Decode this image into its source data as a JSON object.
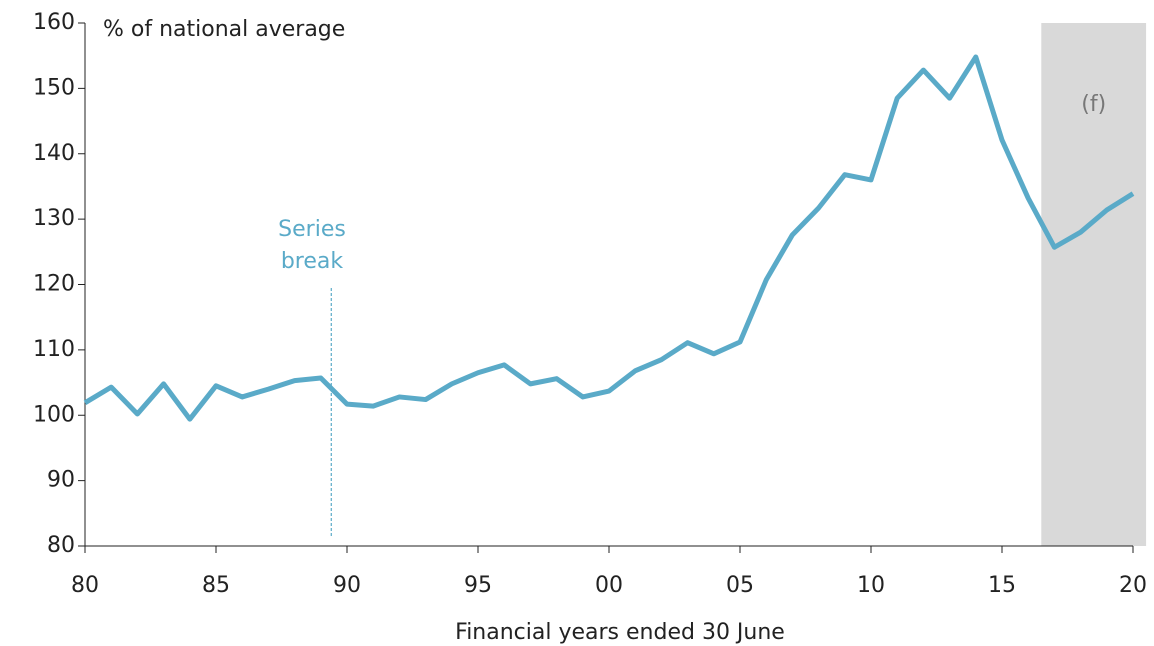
{
  "chart_data": {
    "type": "line",
    "y_label": "% of national average",
    "x_label": "Financial years ended 30 June",
    "x": [
      1980,
      1981,
      1982,
      1983,
      1984,
      1985,
      1986,
      1987,
      1988,
      1989,
      1990,
      1991,
      1992,
      1993,
      1994,
      1995,
      1996,
      1997,
      1998,
      1999,
      2000,
      2001,
      2002,
      2003,
      2004,
      2005,
      2006,
      2007,
      2008,
      2009,
      2010,
      2011,
      2012,
      2013,
      2014,
      2015,
      2016,
      2017,
      2018,
      2019,
      2020
    ],
    "series": [
      {
        "color": "#5aaac8",
        "values": [
          101.9,
          104.3,
          100.2,
          104.8,
          99.4,
          104.5,
          102.8,
          104,
          105.3,
          105.7,
          101.7,
          101.4,
          102.8,
          102.4,
          104.8,
          106.5,
          107.7,
          104.8,
          105.6,
          102.8,
          103.7,
          106.8,
          108.5,
          111.1,
          109.4,
          111.2,
          120.7,
          127.6,
          131.7,
          136.8,
          136,
          148.5,
          152.8,
          148.5,
          154.8,
          142.1,
          133.2,
          125.7,
          128,
          131.4,
          133.9
        ]
      }
    ],
    "xlim": [
      1980,
      2020
    ],
    "xticks": [
      {
        "value": 1980,
        "label": "80"
      },
      {
        "value": 1985,
        "label": "85"
      },
      {
        "value": 1990,
        "label": "90"
      },
      {
        "value": 1995,
        "label": "95"
      },
      {
        "value": 2000,
        "label": "00"
      },
      {
        "value": 2005,
        "label": "05"
      },
      {
        "value": 2010,
        "label": "10"
      },
      {
        "value": 2015,
        "label": "15"
      },
      {
        "value": 2020,
        "label": "20"
      }
    ],
    "ylim": [
      80,
      160
    ],
    "yticks": [
      80,
      90,
      100,
      110,
      120,
      130,
      140,
      150,
      160
    ],
    "forecast": {
      "label": "(f)",
      "x": [
        2016.5,
        2020.5
      ],
      "color": "#d9d9d9"
    },
    "series_break": {
      "x": 1989.4,
      "lines": [
        "Series",
        "break"
      ]
    }
  }
}
